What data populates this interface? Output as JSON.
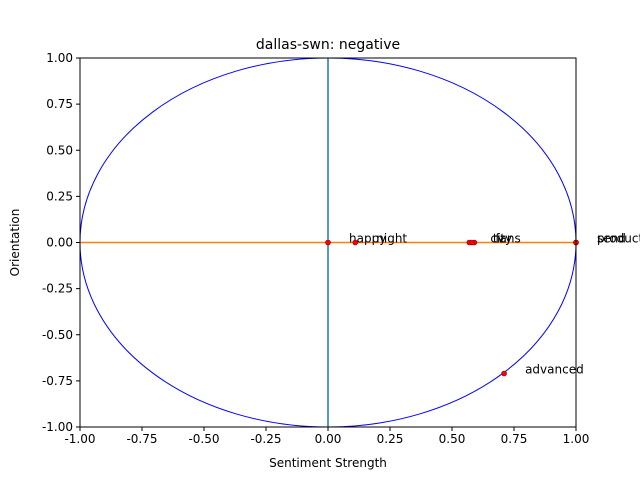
{
  "chart_data": {
    "type": "scatter",
    "title": "dallas-swn: negative",
    "xlabel": "Sentiment Strength",
    "ylabel": "Orientation",
    "xlim": [
      -1.0,
      1.0
    ],
    "ylim": [
      -1.0,
      1.0
    ],
    "x_ticks": [
      "-1.00",
      "-0.75",
      "-0.50",
      "-0.25",
      "0.00",
      "0.25",
      "0.50",
      "0.75",
      "1.00"
    ],
    "y_ticks": [
      "-1.00",
      "-0.75",
      "-0.50",
      "-0.25",
      "0.00",
      "0.25",
      "0.50",
      "0.75",
      "1.00"
    ],
    "grid": false,
    "reference_lines": [
      {
        "orientation": "vertical",
        "value": 0.0,
        "color": "#1f77b4"
      },
      {
        "orientation": "horizontal",
        "value": 0.0,
        "color": "#ff7f0e"
      }
    ],
    "unit_circle": {
      "color": "#0000ff"
    },
    "point_color": "#ff0000",
    "points": [
      {
        "label": "happy",
        "x": 0.0,
        "y": 0.0
      },
      {
        "label": "night",
        "x": 0.11,
        "y": 0.0
      },
      {
        "label": "city",
        "x": 0.57,
        "y": 0.0
      },
      {
        "label": "fans",
        "x": 0.59,
        "y": 0.0
      },
      {
        "label": "tv",
        "x": 0.58,
        "y": 0.0
      },
      {
        "label": "send",
        "x": 1.0,
        "y": 0.0
      },
      {
        "label": "product",
        "x": 1.0,
        "y": 0.0
      },
      {
        "label": "advanced",
        "x": 0.71,
        "y": -0.71
      }
    ]
  }
}
